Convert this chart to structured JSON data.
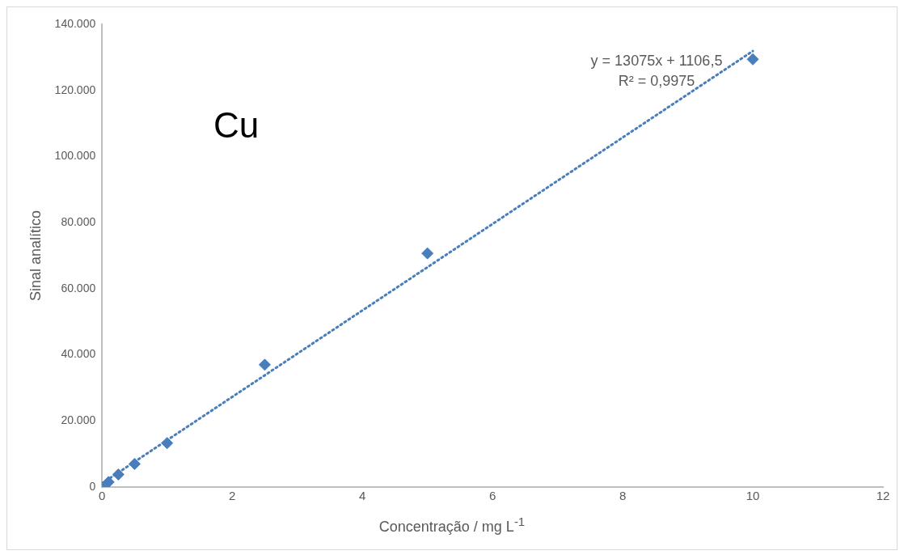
{
  "chart_data": {
    "type": "scatter",
    "xlabel": "Concentração / mg L$^{-1}$",
    "ylabel": "Sinal analítico",
    "xlim": [
      0,
      12
    ],
    "xticks": [
      0,
      2,
      4,
      6,
      8,
      10,
      12
    ],
    "ylim": [
      0,
      140000
    ],
    "yticks": [
      {
        "value": 0,
        "label": "0"
      },
      {
        "value": 20000,
        "label": "20.000"
      },
      {
        "value": 40000,
        "label": "40.000"
      },
      {
        "value": 60000,
        "label": "60.000"
      },
      {
        "value": 80000,
        "label": "80.000"
      },
      {
        "value": 100000,
        "label": "100.000"
      },
      {
        "value": 120000,
        "label": "120.000"
      },
      {
        "value": 140000,
        "label": "140.000"
      }
    ],
    "grid": false,
    "legend": false,
    "marker": "diamond",
    "series": [
      {
        "color": "#4a7ebb",
        "x": [
          0,
          0.1,
          0.25,
          0.5,
          1,
          2.5,
          5,
          10
        ],
        "values": [
          0,
          1500,
          3800,
          7000,
          13300,
          37000,
          70700,
          129400
        ]
      },
      {
        "type": "line",
        "color": "#4a7ebb",
        "line_style": "dotted",
        "marker": "none",
        "x": [
          0,
          10
        ],
        "values": [
          1100,
          131900
        ]
      }
    ],
    "annotations": [
      "Cu",
      "y = 13075x + 1106,5",
      "R² = 0,9975"
    ]
  }
}
